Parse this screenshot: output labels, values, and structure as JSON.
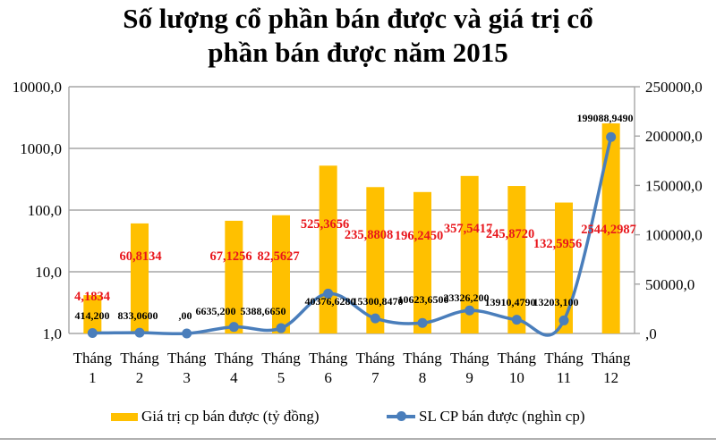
{
  "title": {
    "line1": "Số lượng cổ phần bán được và giá trị cổ",
    "line2": "phần bán được năm 2015"
  },
  "chart_data": {
    "type": "bar+line",
    "title": "Số lượng cổ phần bán được và giá trị cổ phần bán được năm 2015",
    "xlabel": "",
    "categories": [
      "Tháng 1",
      "Tháng 2",
      "Tháng 3",
      "Tháng 4",
      "Tháng 5",
      "Tháng 6",
      "Tháng 7",
      "Tháng 8",
      "Tháng 9",
      "Tháng 10",
      "Tháng 11",
      "Tháng 12"
    ],
    "category_lines": [
      [
        "Tháng",
        "1"
      ],
      [
        "Tháng",
        "2"
      ],
      [
        "Tháng",
        "3"
      ],
      [
        "Tháng",
        "4"
      ],
      [
        "Tháng",
        "5"
      ],
      [
        "Tháng",
        "6"
      ],
      [
        "Tháng",
        "7"
      ],
      [
        "Tháng",
        "8"
      ],
      [
        "Tháng",
        "9"
      ],
      [
        "Tháng",
        "10"
      ],
      [
        "Tháng",
        "11"
      ],
      [
        "Tháng",
        "12"
      ]
    ],
    "series": [
      {
        "name": "Giá trị cp bán được (tỷ đồng)",
        "type": "bar",
        "axis": "left",
        "color": "#ffc000",
        "values": [
          4.1834,
          60.8134,
          0,
          67.1256,
          82.5627,
          525.3656,
          235.8808,
          196.245,
          357.5417,
          245.872,
          132.5956,
          2544.2987
        ],
        "labels": [
          "4,1834",
          "60,8134",
          "",
          "67,1256",
          "82,5627",
          "525,3656",
          "235,8808",
          "196,2450",
          "357,5417",
          "245,8720",
          "132,5956",
          "2544,2987"
        ],
        "label_color": "#e8161c"
      },
      {
        "name": "SL CP bán được (nghìn cp)",
        "type": "line",
        "axis": "right",
        "color": "#4a7ebb",
        "values": [
          414.2,
          833.06,
          0,
          6635.2,
          5388.665,
          40376.628,
          15300.847,
          10623.65,
          23326.2,
          13910.479,
          13203.1,
          199088.949
        ],
        "labels": [
          "414,200",
          "833,0600",
          ",00",
          "6635,200",
          "5388,6650",
          "40376,6280",
          "15300,8470",
          "10623,6500",
          "23326,200",
          "13910,4790",
          "13203,100",
          "199088,9490"
        ],
        "label_color": "#000000"
      }
    ],
    "left_axis": {
      "scale": "log",
      "ylim": [
        1,
        10000
      ],
      "ticks": [
        "10000,0",
        "1000,0",
        "100,0",
        "10,0",
        "1,0"
      ]
    },
    "right_axis": {
      "scale": "linear",
      "ylim": [
        0,
        250000
      ],
      "ticks": [
        "250000,0",
        "200000,0",
        "150000,0",
        "100000,0",
        "50000,0",
        ",0"
      ]
    },
    "grid": true,
    "legend_position": "bottom"
  }
}
